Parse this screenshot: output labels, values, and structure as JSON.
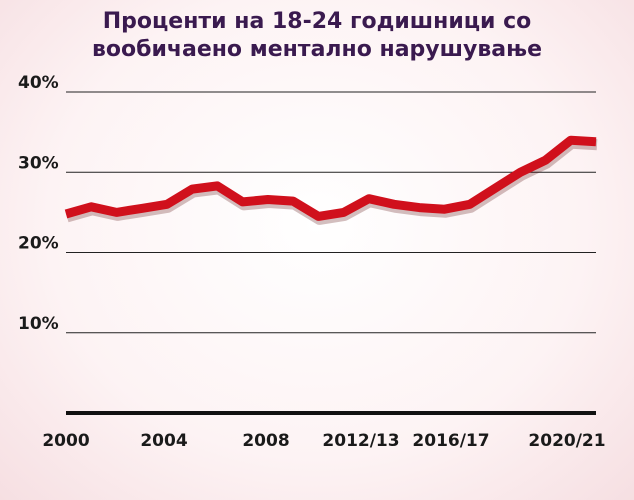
{
  "chart_data": {
    "type": "line",
    "title_line1": "Проценти на 18-24 годишници со",
    "title_line2": "вообичаено ментално нарушување",
    "x_tick_labels": [
      "2000",
      "2004",
      "2008",
      "2012/13",
      "2016/17",
      "2020/21"
    ],
    "y_tick_labels": [
      "10%",
      "20%",
      "30%",
      "40%"
    ],
    "ylim": [
      0,
      40
    ],
    "grid": true,
    "line_color": "#d0101c",
    "series": [
      {
        "x": [
          2000,
          2001,
          2002,
          2003,
          2004,
          2005,
          2006,
          2007,
          2008,
          2009,
          2010,
          2011,
          2012,
          2013,
          2014,
          2015,
          2016,
          2017,
          2018,
          2019,
          2020,
          2021
        ],
        "values": [
          24.8,
          25.7,
          25.0,
          25.5,
          26.0,
          27.9,
          28.3,
          26.3,
          26.6,
          26.4,
          24.5,
          25.0,
          26.7,
          26.0,
          25.6,
          25.4,
          26.0,
          28.0,
          30.0,
          31.5,
          34.0,
          33.8
        ]
      }
    ]
  }
}
